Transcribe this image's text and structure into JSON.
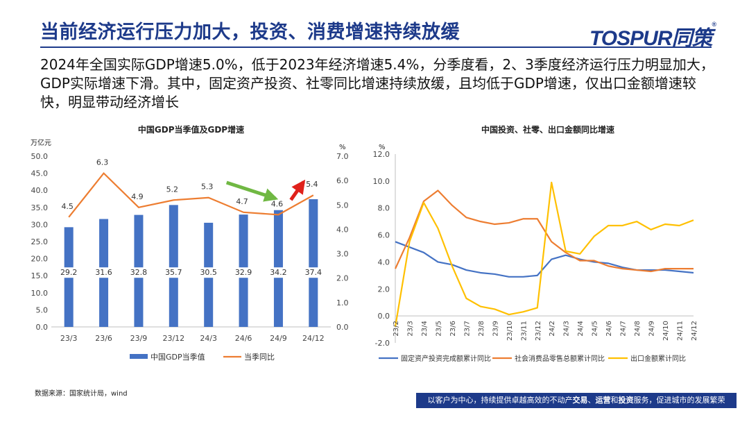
{
  "header": {
    "title": "当前经济运行压力加大，投资、消费增速持续放缓",
    "logo_text": "T",
    "logo_o": "O",
    "logo_rest": "SPUR同策",
    "logo_reg": "®"
  },
  "summary": "2024年全国实际GDP增速5.0%，低于2023年经济增速5.4%，分季度看，2、3季度经济运行压力明显加大，GDP实际增速下滑。其中，固定资产投资、社零同比增速持续放缓，且均低于GDP增速，仅出口金额增速较快，明显带动经济增长",
  "source": "数据来源：国家统计局，wind",
  "footer": {
    "part1": "以客户为中心，持续提供卓越高效的不动产",
    "bold1": "交易",
    "sep1": "、",
    "bold2": "运营",
    "mid": "和",
    "bold3": "投资",
    "part2": "服务，促进城市的发展繁荣"
  },
  "colors": {
    "brand": "#1d3a8a",
    "bar": "#4472c4",
    "orange": "#ed7d31",
    "yellow": "#ffc000",
    "green_arrow": "#70b843",
    "red_arrow": "#e0211b"
  },
  "chart_data": [
    {
      "type": "bar",
      "title": "中国GDP当季值及GDP增速",
      "categories": [
        "23/3",
        "23/6",
        "23/9",
        "23/12",
        "24/3",
        "24/6",
        "24/9",
        "24/12"
      ],
      "y_left_unit": "万亿元",
      "y_right_unit": "%",
      "ylim_left": [
        0,
        50
      ],
      "ylim_right": [
        0,
        7
      ],
      "left_ticks": [
        "0.0",
        "5.0",
        "10.0",
        "15.0",
        "20.0",
        "25.0",
        "30.0",
        "35.0",
        "40.0",
        "45.0",
        "50.0"
      ],
      "right_ticks": [
        "0.0",
        "1.0",
        "2.0",
        "3.0",
        "4.0",
        "5.0",
        "6.0",
        "7.0"
      ],
      "series": [
        {
          "name": "中国GDP当季值",
          "type": "bar",
          "axis": "left",
          "values": [
            29.2,
            31.6,
            32.8,
            35.7,
            30.5,
            32.9,
            34.2,
            37.4
          ],
          "labels": [
            "29.2",
            "31.6",
            "32.8",
            "35.7",
            "30.5",
            "32.9",
            "34.2",
            "37.4"
          ]
        },
        {
          "name": "当季同比",
          "type": "line",
          "axis": "right",
          "values": [
            4.5,
            6.3,
            4.9,
            5.2,
            5.3,
            4.7,
            4.6,
            5.4
          ],
          "labels": [
            "4.5",
            "6.3",
            "4.9",
            "5.2",
            "5.3",
            "4.7",
            "4.6",
            "5.4"
          ]
        }
      ],
      "legend": "bottom"
    },
    {
      "type": "line",
      "title": "中国投资、社零、出口金额同比增速",
      "y_unit": "%",
      "ylim": [
        -2,
        12
      ],
      "y_ticks": [
        "-2.0",
        "0.0",
        "2.0",
        "4.0",
        "6.0",
        "8.0",
        "10.0",
        "12.0"
      ],
      "x": [
        "23/2",
        "23/3",
        "23/4",
        "23/5",
        "23/6",
        "23/7",
        "23/8",
        "23/9",
        "23/10",
        "23/11",
        "23/12",
        "24/2",
        "24/3",
        "24/4",
        "24/5",
        "24/6",
        "24/7",
        "24/8",
        "24/9",
        "24/10",
        "24/11",
        "24/12"
      ],
      "x_labels": [
        "23/2",
        "23/3",
        "23/4",
        "23/5",
        "23/6",
        "23/7",
        "23/8",
        "23/9",
        "23/10",
        "23/11",
        "23/12",
        "24/2",
        "24/3",
        "24/4",
        "24/5",
        "24/6",
        "24/7",
        "24/8",
        "24/9",
        "24/10",
        "24/11",
        "24/12"
      ],
      "series": [
        {
          "name": "固定资产投资完成额累计同比",
          "values": [
            5.5,
            5.1,
            4.7,
            4.0,
            3.8,
            3.4,
            3.2,
            3.1,
            2.9,
            2.9,
            3.0,
            4.2,
            4.5,
            4.2,
            4.0,
            3.9,
            3.6,
            3.4,
            3.4,
            3.4,
            3.3,
            3.2
          ]
        },
        {
          "name": "社会消费品零售总额累计同比",
          "values": [
            3.5,
            5.8,
            8.5,
            9.3,
            8.2,
            7.3,
            7.0,
            6.8,
            6.9,
            7.2,
            7.2,
            5.5,
            4.7,
            4.1,
            4.1,
            3.7,
            3.5,
            3.4,
            3.3,
            3.5,
            3.5,
            3.5
          ]
        },
        {
          "name": "出口金额累计同比",
          "values": [
            -0.8,
            5.5,
            8.4,
            6.5,
            3.7,
            1.3,
            0.7,
            0.5,
            0.1,
            0.3,
            0.6,
            9.9,
            4.8,
            4.6,
            5.9,
            6.7,
            6.7,
            7.0,
            6.4,
            6.8,
            6.7,
            7.1
          ]
        }
      ],
      "legend": "bottom"
    }
  ]
}
